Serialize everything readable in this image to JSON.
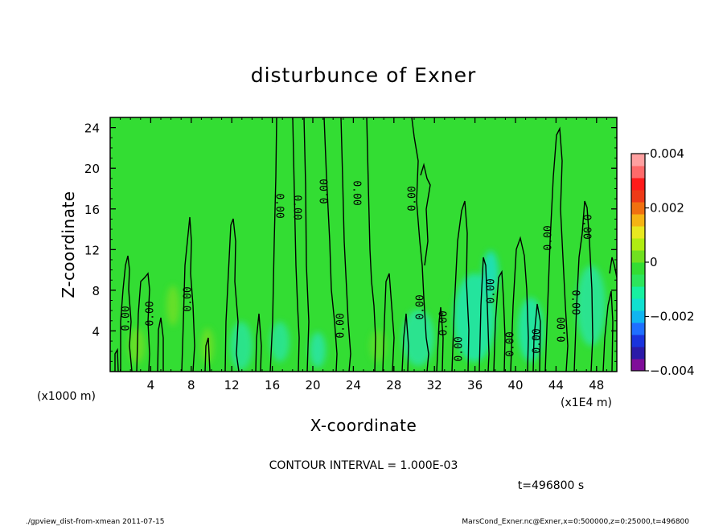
{
  "chart_data": {
    "type": "heatmap",
    "title": "disturbunce of Exner",
    "xlabel": "X-coordinate",
    "ylabel": "Z-coordinate",
    "x_units_label": "(x1000 m)",
    "x_scale_label": "(x1E4 m)",
    "xlim": [
      0,
      50
    ],
    "ylim": [
      0,
      25
    ],
    "x_ticks": [
      4,
      8,
      12,
      16,
      20,
      24,
      28,
      32,
      36,
      40,
      44,
      48
    ],
    "y_ticks": [
      4,
      8,
      12,
      16,
      20,
      24
    ],
    "x_tick_labels": [
      "4",
      "8",
      "12",
      "16",
      "20",
      "24",
      "28",
      "32",
      "36",
      "40",
      "44",
      "48"
    ],
    "y_tick_labels": [
      "4",
      "8",
      "12",
      "16",
      "20",
      "24"
    ],
    "background_color": "#33dd33",
    "colorbar": {
      "min": -0.004,
      "max": 0.004,
      "tick_values": [
        0.004,
        0.002,
        0,
        -0.002,
        -0.004
      ],
      "tick_labels": [
        "0.004",
        "0.002",
        "0",
        "−0.002",
        "−0.004"
      ],
      "colors": [
        "#7f0d99",
        "#2b1aa8",
        "#1a33dd",
        "#1f6fff",
        "#10b5f0",
        "#10e0d0",
        "#16f0a0",
        "#2ce55c",
        "#33dd33",
        "#70e020",
        "#b0ec12",
        "#e8e820",
        "#f5b414",
        "#f07010",
        "#ee3a18",
        "#ff1a1a",
        "#ff6a6a",
        "#ffa0a0"
      ]
    },
    "contour_level_label": "0.00",
    "contour_interval": "CONTOUR INTERVAL = 1.000E-03",
    "time_label": "t=496800 s",
    "footer_left": "./gpview_dist-from-xmean  2011-07-15",
    "footer_right": "MarsCond_Exner.nc@Exner,x=0:500000,z=0:25000,t=496800"
  }
}
